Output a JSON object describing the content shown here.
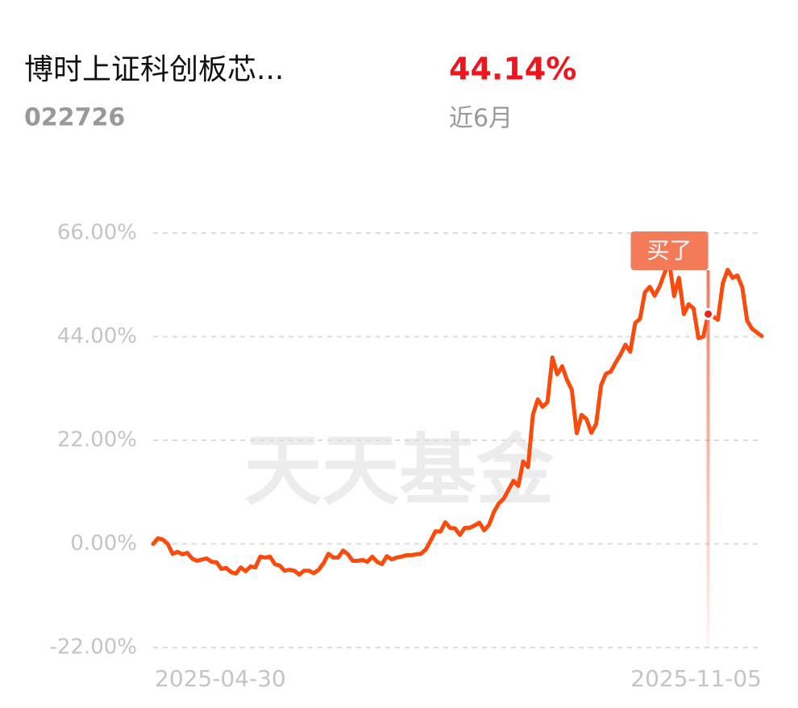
{
  "header": {
    "title": "博时上证科创板芯...",
    "code": "022726",
    "return": "44.14%",
    "period": "近6月"
  },
  "chart_data": {
    "type": "line",
    "watermark": "天天基金",
    "color": "#fa4a0c",
    "grid": true,
    "categories": [
      "2025-04-30",
      null,
      null,
      null,
      null,
      null,
      null,
      null,
      null,
      null,
      null,
      null,
      null,
      null,
      null,
      null,
      null,
      null,
      null,
      null,
      null,
      null,
      null,
      null,
      null,
      null,
      null,
      null,
      null,
      null,
      null,
      null,
      null,
      null,
      null,
      null,
      null,
      null,
      null,
      null,
      null,
      null,
      null,
      null,
      null,
      null,
      null,
      null,
      null,
      null,
      null,
      null,
      null,
      null,
      null,
      null,
      null,
      null,
      null,
      null,
      null,
      null,
      null,
      null,
      null,
      null,
      null,
      null,
      null,
      null,
      null,
      null,
      null,
      null,
      null,
      null,
      null,
      null,
      null,
      null,
      null,
      null,
      null,
      null,
      null,
      null,
      null,
      null,
      null,
      null,
      null,
      null,
      null,
      null,
      null,
      null,
      null,
      null,
      null,
      null,
      null,
      null,
      null,
      null,
      null,
      null,
      null,
      null,
      null,
      null,
      null,
      null,
      null,
      null,
      null,
      null,
      null,
      null,
      null,
      null,
      null,
      null,
      null,
      null,
      null,
      "2025-11-05"
    ],
    "values": [
      0,
      1.2,
      0.9,
      0,
      -2.1,
      -1.7,
      -2.2,
      -1.9,
      -3.1,
      -3.6,
      -3.3,
      -3.1,
      -3.8,
      -3.9,
      -5.3,
      -5.1,
      -6.0,
      -6.3,
      -5.0,
      -5.8,
      -4.8,
      -5.0,
      -2.7,
      -2.9,
      -2.7,
      -4.3,
      -4.6,
      -5.7,
      -5.5,
      -5.7,
      -6.5,
      -5.7,
      -5.7,
      -6.2,
      -5.5,
      -4.1,
      -2.1,
      -2.9,
      -2.9,
      -1.4,
      -2.2,
      -3.6,
      -3.6,
      -3.4,
      -3.8,
      -2.7,
      -3.8,
      -4.3,
      -2.6,
      -3.3,
      -2.9,
      -2.7,
      -2.4,
      -2.4,
      -2.2,
      -2.1,
      -1.2,
      0.7,
      2.7,
      2.6,
      4.6,
      3.4,
      3.3,
      1.9,
      3.4,
      3.4,
      3.9,
      4.5,
      2.9,
      4.1,
      6.8,
      8.6,
      9.6,
      11.5,
      13.4,
      12.3,
      17.5,
      16.3,
      27.4,
      30.7,
      29.1,
      30.1,
      39.6,
      36.0,
      37.7,
      34.8,
      32.7,
      23.5,
      27.4,
      26.5,
      23.6,
      25.5,
      33.7,
      36.1,
      36.6,
      38.5,
      40.2,
      42.3,
      40.8,
      46.9,
      47.8,
      53.4,
      54.6,
      52.7,
      54.6,
      57.4,
      59.9,
      52.6,
      56.5,
      48.8,
      50.9,
      50.0,
      43.7,
      44.0,
      48.8,
      48.3,
      47.6,
      55.3,
      58.2,
      56.5,
      57.0,
      54.5,
      47.4,
      45.7,
      44.9,
      44.14
    ],
    "ylim": [
      -22,
      66
    ],
    "yticks": [
      {
        "value": -22,
        "label": "-22.00%"
      },
      {
        "value": 0,
        "label": "0.00%"
      },
      {
        "value": 22,
        "label": "22.00%"
      },
      {
        "value": 44,
        "label": "44.00%"
      },
      {
        "value": 66,
        "label": "66.00%"
      }
    ],
    "annotation": {
      "text": "买了",
      "index": 114
    }
  }
}
